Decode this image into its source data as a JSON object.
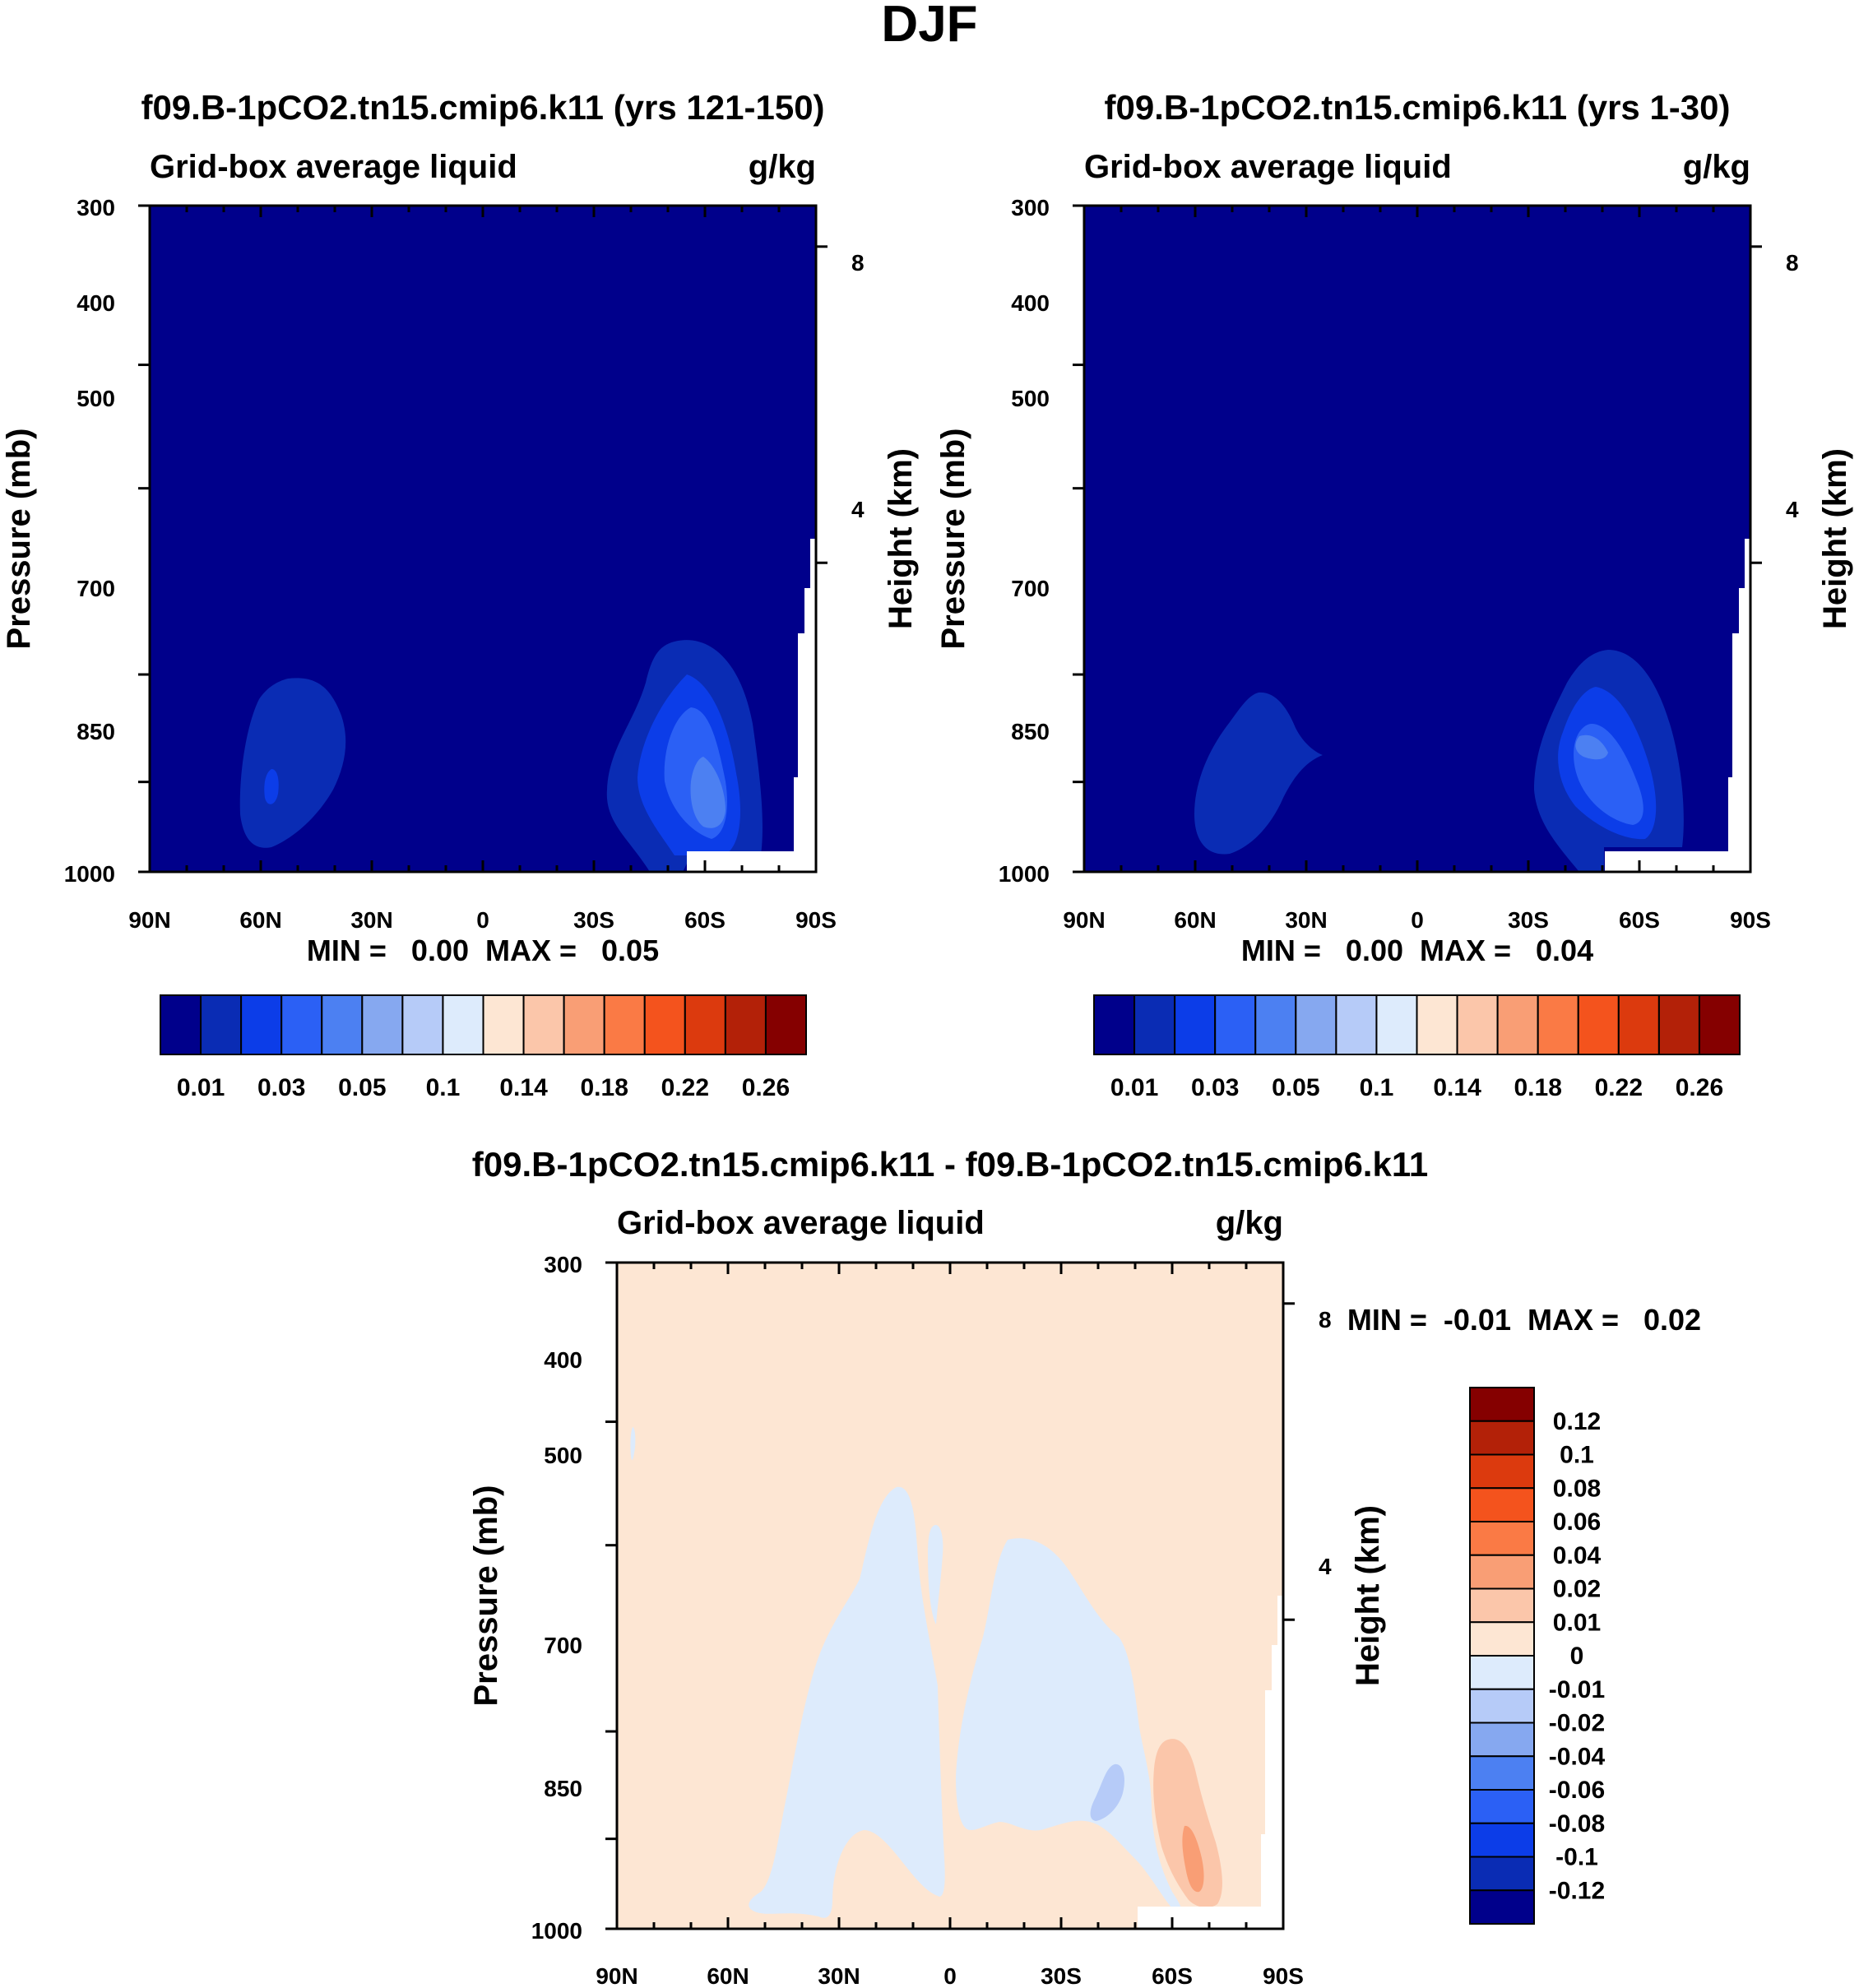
{
  "figure": {
    "title": "DJF"
  },
  "chart_data": [
    {
      "type": "contour",
      "panel": "top-left",
      "title": "f09.B-1pCO2.tn15.cmip6.k11 (yrs 121-150)",
      "left_label": "Grid-box average liquid",
      "right_label": "g/kg",
      "xlabel": "",
      "ylabel": "Pressure (mb)",
      "y2label": "Height (km)",
      "xticks": [
        "90N",
        "60N",
        "30N",
        "0",
        "30S",
        "60S",
        "90S"
      ],
      "yticks": [
        "300",
        "400",
        "500",
        "700",
        "850",
        "1000"
      ],
      "y2ticks": [
        "8",
        "4"
      ],
      "ylim": [
        300,
        1000
      ],
      "stats": "MIN =   0.00  MAX =   0.05",
      "min": 0.0,
      "max": 0.05,
      "background_level": 0.005,
      "features": [
        {
          "lat": -58,
          "pressure": 900,
          "value": 0.05,
          "desc": "SH mid-latitude low cloud maximum"
        },
        {
          "lat": 52,
          "pressure": 900,
          "value": 0.02,
          "desc": "NH mid-latitude low cloud"
        }
      ],
      "colorbar": {
        "labels": [
          "0.01",
          "0.03",
          "0.05",
          "0.1",
          "0.14",
          "0.18",
          "0.22",
          "0.26"
        ],
        "colors": [
          "#00008B",
          "#0A2CB4",
          "#0C3DE8",
          "#2B60F5",
          "#4C80F2",
          "#86A8F0",
          "#B6CBF8",
          "#DDEBFC",
          "#FDE6D3",
          "#FBC6AA",
          "#F99E75",
          "#FA7A45",
          "#F4531D",
          "#DC3A0E",
          "#B32108",
          "#850000"
        ]
      }
    },
    {
      "type": "contour",
      "panel": "top-right",
      "title": "f09.B-1pCO2.tn15.cmip6.k11 (yrs 1-30)",
      "left_label": "Grid-box average liquid",
      "right_label": "g/kg",
      "xlabel": "",
      "ylabel": "Pressure (mb)",
      "y2label": "Height (km)",
      "xticks": [
        "90N",
        "60N",
        "30N",
        "0",
        "30S",
        "60S",
        "90S"
      ],
      "yticks": [
        "300",
        "400",
        "500",
        "700",
        "850",
        "1000"
      ],
      "y2ticks": [
        "8",
        "4"
      ],
      "ylim": [
        300,
        1000
      ],
      "stats": "MIN =   0.00  MAX =   0.04",
      "min": 0.0,
      "max": 0.04,
      "background_level": 0.005,
      "features": [
        {
          "lat": -48,
          "pressure": 890,
          "value": 0.04,
          "desc": "SH mid-latitude low cloud maximum"
        },
        {
          "lat": 50,
          "pressure": 900,
          "value": 0.015,
          "desc": "NH mid-latitude low cloud"
        }
      ],
      "colorbar": {
        "labels": [
          "0.01",
          "0.03",
          "0.05",
          "0.1",
          "0.14",
          "0.18",
          "0.22",
          "0.26"
        ],
        "colors": [
          "#00008B",
          "#0A2CB4",
          "#0C3DE8",
          "#2B60F5",
          "#4C80F2",
          "#86A8F0",
          "#B6CBF8",
          "#DDEBFC",
          "#FDE6D3",
          "#FBC6AA",
          "#F99E75",
          "#FA7A45",
          "#F4531D",
          "#DC3A0E",
          "#B32108",
          "#850000"
        ]
      }
    },
    {
      "type": "contour",
      "panel": "bottom",
      "title": "f09.B-1pCO2.tn15.cmip6.k11 - f09.B-1pCO2.tn15.cmip6.k11",
      "left_label": "Grid-box average liquid",
      "right_label": "g/kg",
      "xlabel": "",
      "ylabel": "Pressure (mb)",
      "y2label": "Height (km)",
      "xticks": [
        "90N",
        "60N",
        "30N",
        "0",
        "30S",
        "60S",
        "90S"
      ],
      "yticks": [
        "300",
        "400",
        "500",
        "700",
        "850",
        "1000"
      ],
      "y2ticks": [
        "8",
        "4"
      ],
      "ylim": [
        300,
        1000
      ],
      "stats": "MIN =  -0.01  MAX =   0.02",
      "min": -0.01,
      "max": 0.02,
      "background_level": 0.005,
      "features": [
        {
          "lat": -68,
          "pressure": 920,
          "value": 0.02,
          "desc": "SH positive difference"
        },
        {
          "lat": -45,
          "pressure": 870,
          "value": -0.01,
          "desc": "SH negative difference"
        }
      ],
      "colorbar": {
        "labels": [
          "0.12",
          "0.1",
          "0.08",
          "0.06",
          "0.04",
          "0.02",
          "0.01",
          "0",
          "-0.01",
          "-0.02",
          "-0.04",
          "-0.06",
          "-0.08",
          "-0.1",
          "-0.12"
        ],
        "colors": [
          "#850000",
          "#B32108",
          "#DC3A0E",
          "#F4531D",
          "#FA7A45",
          "#F99E75",
          "#FBC6AA",
          "#FDE6D3",
          "#DDEBFC",
          "#B6CBF8",
          "#86A8F0",
          "#4C80F2",
          "#2B60F5",
          "#0C3DE8",
          "#0A2CB4",
          "#00008B"
        ]
      }
    }
  ]
}
